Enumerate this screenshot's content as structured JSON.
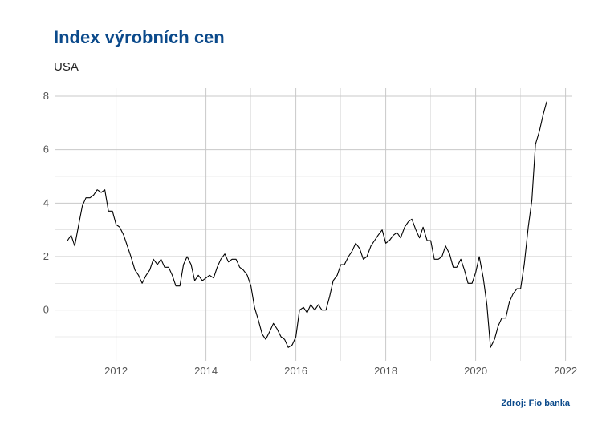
{
  "title": "Index výrobních cen",
  "subtitle": "USA",
  "source": "Zdroj: Fio banka",
  "chart_data": {
    "type": "line",
    "title": "Index výrobních cen",
    "subtitle": "USA",
    "xlabel": "",
    "ylabel": "",
    "xlim": [
      2010.65,
      2022.15
    ],
    "ylim": [
      -1.9,
      8.3
    ],
    "x_ticks": [
      2012,
      2014,
      2016,
      2018,
      2020,
      2022
    ],
    "y_ticks": [
      0,
      2,
      4,
      6,
      8
    ],
    "grid": true,
    "legend": "none",
    "line_color": "#000000",
    "series": [
      {
        "x": [
          2010.92,
          2011.0,
          2011.08,
          2011.17,
          2011.25,
          2011.33,
          2011.42,
          2011.5,
          2011.58,
          2011.67,
          2011.75,
          2011.83,
          2011.92,
          2012.0,
          2012.08,
          2012.17,
          2012.25,
          2012.33,
          2012.42,
          2012.5,
          2012.58,
          2012.67,
          2012.75,
          2012.83,
          2012.92,
          2013.0,
          2013.08,
          2013.17,
          2013.25,
          2013.33,
          2013.42,
          2013.5,
          2013.58,
          2013.67,
          2013.75,
          2013.83,
          2013.92,
          2014.0,
          2014.08,
          2014.17,
          2014.25,
          2014.33,
          2014.42,
          2014.5,
          2014.58,
          2014.67,
          2014.75,
          2014.83,
          2014.92,
          2015.0,
          2015.08,
          2015.17,
          2015.25,
          2015.33,
          2015.42,
          2015.5,
          2015.58,
          2015.67,
          2015.75,
          2015.83,
          2015.92,
          2016.0,
          2016.08,
          2016.17,
          2016.25,
          2016.33,
          2016.42,
          2016.5,
          2016.58,
          2016.67,
          2016.75,
          2016.83,
          2016.92,
          2017.0,
          2017.08,
          2017.17,
          2017.25,
          2017.33,
          2017.42,
          2017.5,
          2017.58,
          2017.67,
          2017.75,
          2017.83,
          2017.92,
          2018.0,
          2018.08,
          2018.17,
          2018.25,
          2018.33,
          2018.42,
          2018.5,
          2018.58,
          2018.67,
          2018.75,
          2018.83,
          2018.92,
          2019.0,
          2019.08,
          2019.17,
          2019.25,
          2019.33,
          2019.42,
          2019.5,
          2019.58,
          2019.67,
          2019.75,
          2019.83,
          2019.92,
          2020.0,
          2020.08,
          2020.17,
          2020.25,
          2020.33,
          2020.42,
          2020.5,
          2020.58,
          2020.67,
          2020.75,
          2020.83,
          2020.92,
          2021.0,
          2021.08,
          2021.17,
          2021.25,
          2021.33,
          2021.42,
          2021.5,
          2021.58
        ],
        "values": [
          2.6,
          2.8,
          2.4,
          3.2,
          3.9,
          4.2,
          4.2,
          4.3,
          4.5,
          4.4,
          4.5,
          3.7,
          3.7,
          3.2,
          3.1,
          2.8,
          2.4,
          2.0,
          1.5,
          1.3,
          1.0,
          1.3,
          1.5,
          1.9,
          1.7,
          1.9,
          1.6,
          1.6,
          1.3,
          0.9,
          0.9,
          1.7,
          2.0,
          1.7,
          1.1,
          1.3,
          1.1,
          1.2,
          1.3,
          1.2,
          1.6,
          1.9,
          2.1,
          1.8,
          1.9,
          1.9,
          1.6,
          1.5,
          1.3,
          0.9,
          0.1,
          -0.4,
          -0.9,
          -1.1,
          -0.8,
          -0.5,
          -0.7,
          -1.0,
          -1.1,
          -1.4,
          -1.3,
          -1.0,
          0.0,
          0.1,
          -0.1,
          0.2,
          0.0,
          0.2,
          0.0,
          0.0,
          0.5,
          1.1,
          1.3,
          1.7,
          1.7,
          2.0,
          2.2,
          2.5,
          2.3,
          1.9,
          2.0,
          2.4,
          2.6,
          2.8,
          3.0,
          2.5,
          2.6,
          2.8,
          2.9,
          2.7,
          3.1,
          3.3,
          3.4,
          3.0,
          2.7,
          3.1,
          2.6,
          2.6,
          1.9,
          1.9,
          2.0,
          2.4,
          2.1,
          1.6,
          1.6,
          1.9,
          1.5,
          1.0,
          1.0,
          1.4,
          2.0,
          1.2,
          0.2,
          -1.4,
          -1.1,
          -0.6,
          -0.3,
          -0.3,
          0.3,
          0.6,
          0.8,
          0.8,
          1.7,
          3.1,
          4.1,
          6.2,
          6.7,
          7.3,
          7.8
        ]
      }
    ]
  }
}
